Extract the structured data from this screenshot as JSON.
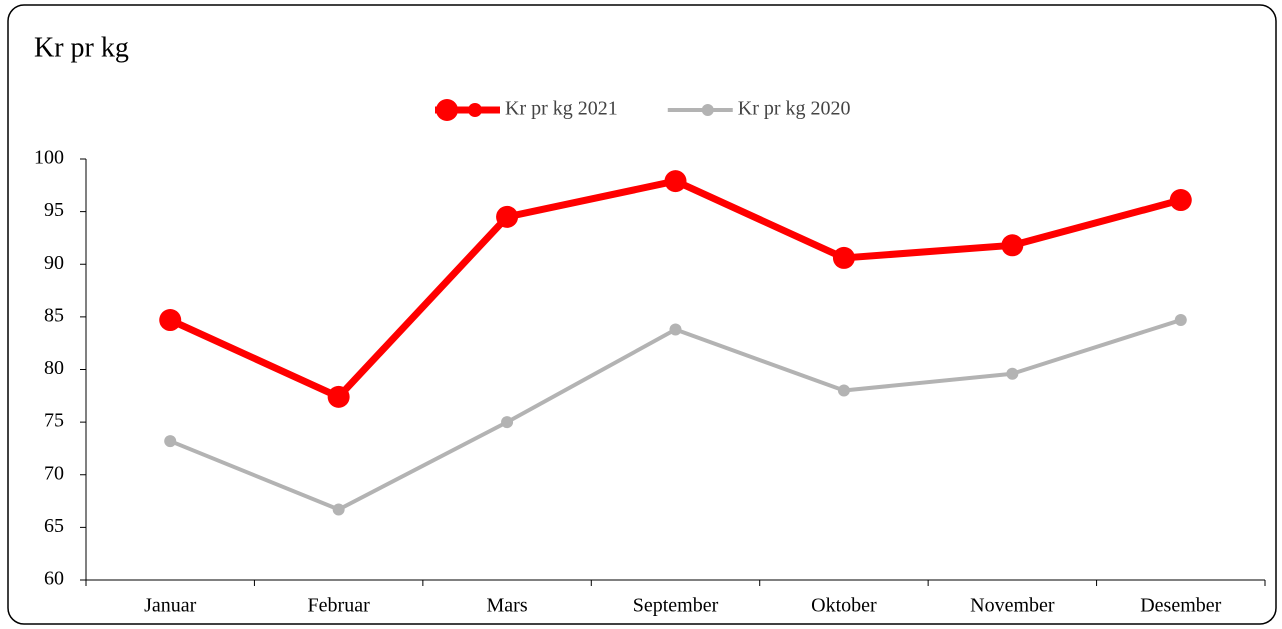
{
  "chart_data": {
    "type": "line",
    "title": "Kr pr kg",
    "categories": [
      "Januar",
      "Februar",
      "Mars",
      "September",
      "Oktober",
      "November",
      "Desember"
    ],
    "series": [
      {
        "name": "Kr pr kg 2021",
        "color": "#ff0000",
        "values": [
          84.7,
          77.4,
          94.5,
          97.9,
          90.6,
          91.8,
          96.1
        ]
      },
      {
        "name": "Kr pr kg 2020",
        "color": "#b3b3b3",
        "values": [
          73.2,
          66.7,
          75.0,
          83.8,
          78.0,
          79.6,
          84.7
        ]
      }
    ],
    "ylim": [
      60,
      100
    ],
    "yticks": [
      60,
      65,
      70,
      75,
      80,
      85,
      90,
      95,
      100
    ],
    "grid": false,
    "legend": "top"
  }
}
